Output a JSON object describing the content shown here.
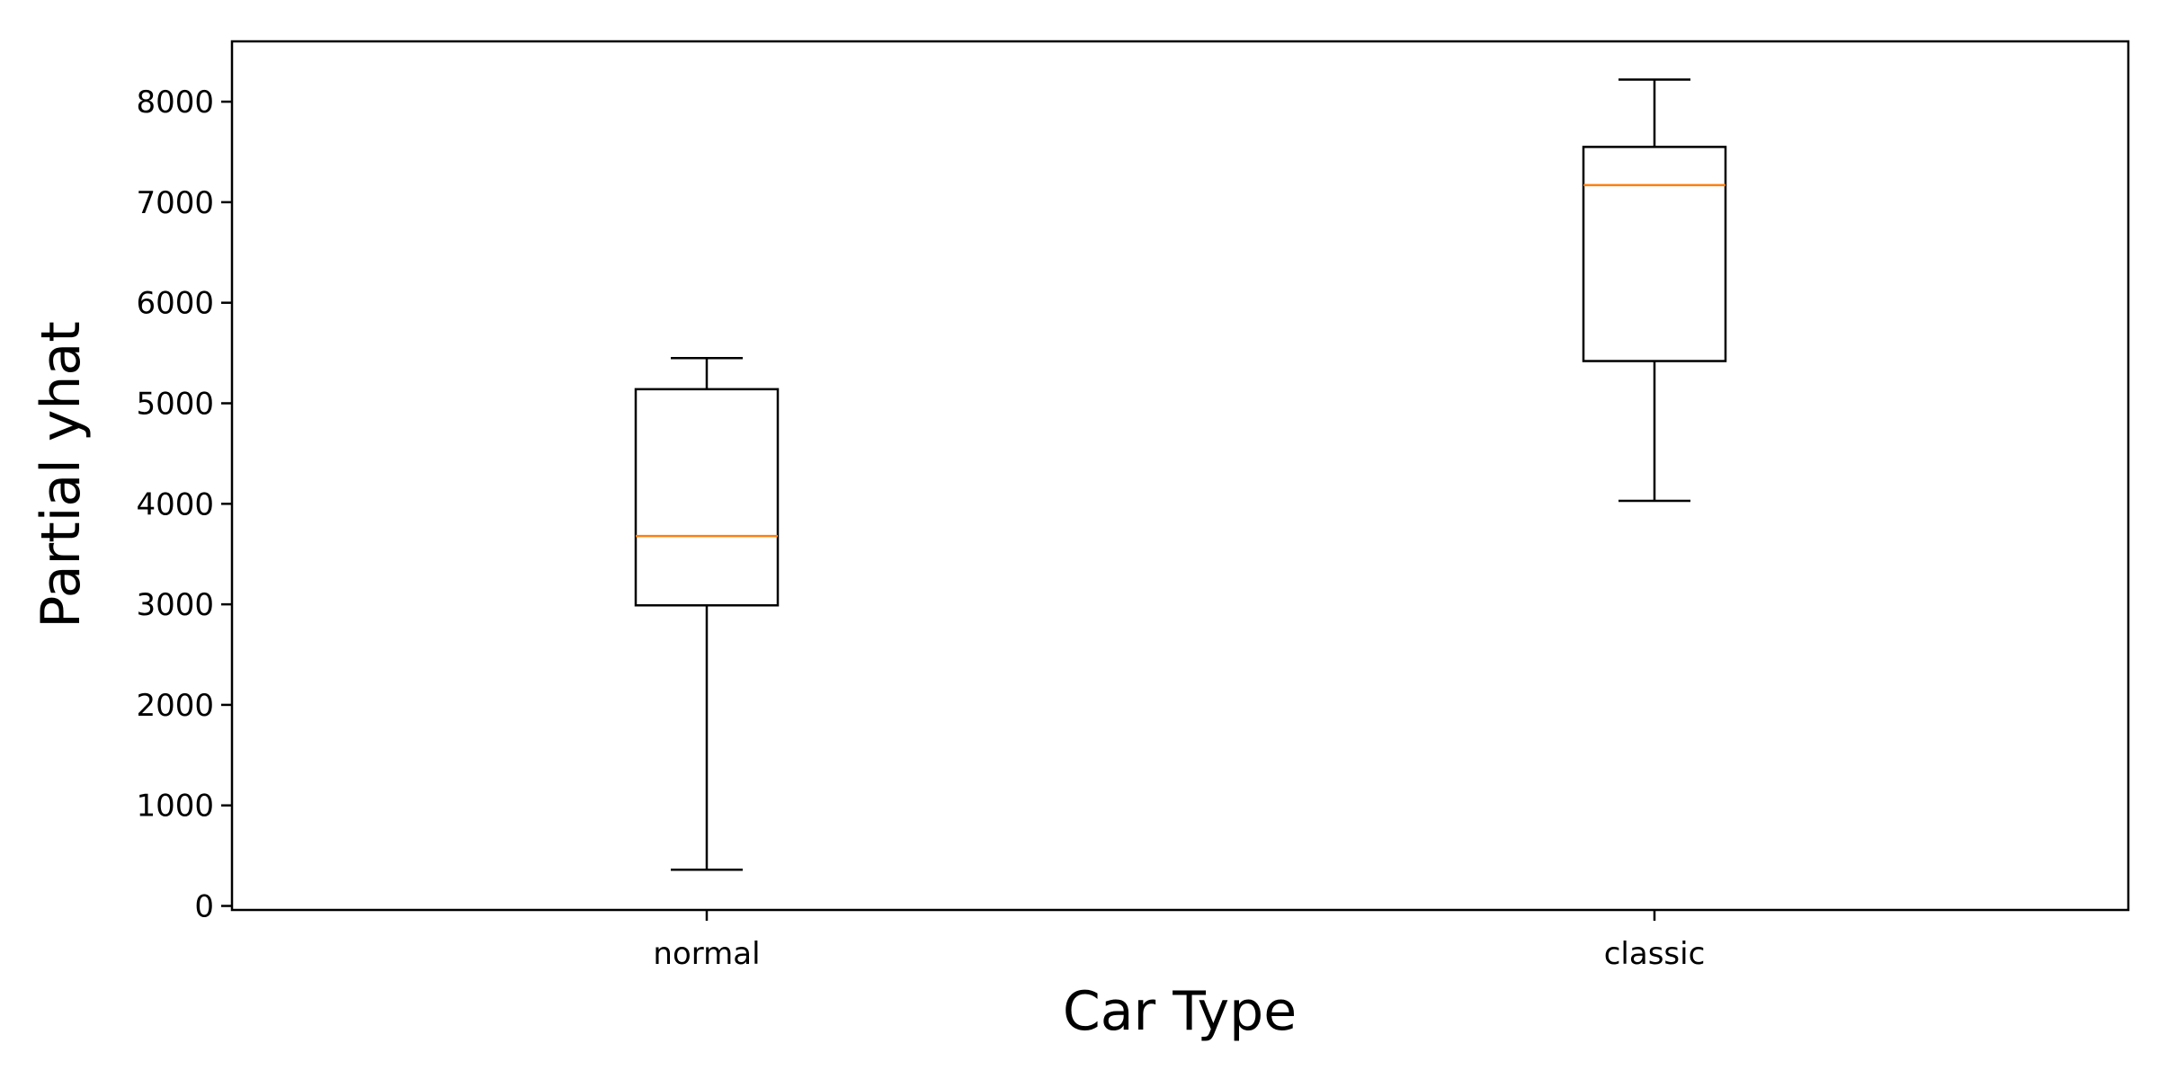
{
  "chart_data": {
    "type": "boxplot",
    "title": "",
    "xlabel": "Car Type",
    "ylabel": "Partial yhat",
    "categories": [
      "normal",
      "classic"
    ],
    "boxes": [
      {
        "label": "normal",
        "whisker_low": 360,
        "q1": 2990,
        "median": 3680,
        "q3": 5140,
        "whisker_high": 5450
      },
      {
        "label": "classic",
        "whisker_low": 4030,
        "q1": 5420,
        "median": 7170,
        "q3": 7550,
        "whisker_high": 8220
      }
    ],
    "yticks": [
      0,
      1000,
      2000,
      3000,
      4000,
      5000,
      6000,
      7000,
      8000
    ],
    "ylim": [
      -40,
      8600
    ],
    "grid": false,
    "colors": {
      "box": "#000000",
      "median": "#ff7f0e",
      "axis": "#000000"
    }
  }
}
